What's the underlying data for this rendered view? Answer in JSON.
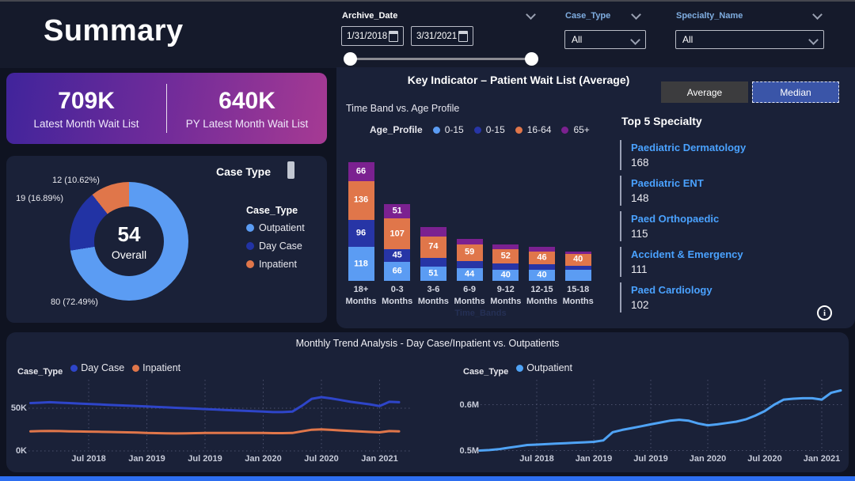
{
  "page": {
    "title": "Summary"
  },
  "filters": {
    "archive_date": {
      "label": "Archive_Date",
      "start": "1/31/2018",
      "end": "3/31/2021"
    },
    "case_type": {
      "label": "Case_Type",
      "value": "All"
    },
    "specialty_name": {
      "label": "Specialty_Name",
      "value": "All"
    }
  },
  "kpi": {
    "current_value": "709K",
    "current_label": "Latest Month Wait List",
    "py_value": "640K",
    "py_label": "PY Latest Month Wait List"
  },
  "key_indicator": {
    "title": "Key Indicator – Patient Wait List (Average)",
    "subtitle": "Time Band vs. Age Profile",
    "toggle": {
      "average": "Average",
      "median": "Median",
      "selected": "Median"
    }
  },
  "top5": {
    "title": "Top 5 Specialty",
    "items": [
      {
        "name": "Paediatric Dermatology",
        "value": "168"
      },
      {
        "name": "Paediatric ENT",
        "value": "148"
      },
      {
        "name": "Paed Orthopaedic",
        "value": "115"
      },
      {
        "name": "Accident & Emergency",
        "value": "111"
      },
      {
        "name": "Paed Cardiology",
        "value": "102"
      }
    ]
  },
  "trend": {
    "title": "Monthly Trend Analysis - Day Case/Inpatient vs. Outpatients"
  },
  "colors": {
    "light_blue": "#5b9cf3",
    "dark_blue": "#2735a6",
    "orange": "#e0764a",
    "purple": "#7b2190",
    "daycase_blue": "#2e45c9",
    "outpatient_blue": "#4fa3f5",
    "kpi_gradient_start": "#40249b",
    "kpi_gradient_end": "#a63a93",
    "bottom_strip": "#2d6ef0"
  },
  "chart_data": [
    {
      "id": "case-type-donut",
      "type": "pie",
      "title": "Case Type",
      "center_value": "54",
      "center_label": "Overall",
      "legend_title": "Case_Type",
      "slices": [
        {
          "name": "Outpatient",
          "value": 80,
          "pct": 72.49,
          "label": "80 (72.49%)",
          "color": "#5b9cf3"
        },
        {
          "name": "Day Case",
          "value": 19,
          "pct": 16.89,
          "label": "19 (16.89%)",
          "color": "#2233a4"
        },
        {
          "name": "Inpatient",
          "value": 12,
          "pct": 10.62,
          "label": "12 (10.62%)",
          "color": "#e0764a"
        }
      ]
    },
    {
      "id": "time-band-vs-age-profile",
      "type": "bar",
      "stacked": true,
      "title": "Time Band vs. Age Profile",
      "legend_title": "Age_Profile",
      "xlabel": "Time_Bands",
      "categories": [
        "18+ Months",
        "0-3 Months",
        "3-6 Months",
        "6-9 Months",
        "9-12 Months",
        "12-15 Months",
        "15-18 Months"
      ],
      "series": [
        {
          "name": "0-15",
          "color": "#5b9cf3",
          "values": [
            118,
            66,
            51,
            44,
            40,
            40,
            38
          ],
          "labels": [
            "118",
            "66",
            "51",
            "44",
            "40",
            "40",
            ""
          ]
        },
        {
          "name": "0-15",
          "color": "#2735a6",
          "values": [
            96,
            45,
            30,
            25,
            20,
            18,
            16
          ],
          "labels": [
            "96",
            "45",
            "",
            "",
            "",
            "",
            ""
          ]
        },
        {
          "name": "16-64",
          "color": "#e0764a",
          "values": [
            136,
            107,
            74,
            59,
            52,
            46,
            40
          ],
          "labels": [
            "136",
            "107",
            "74",
            "59",
            "52",
            "46",
            "40"
          ]
        },
        {
          "name": "65+",
          "color": "#7b2190",
          "values": [
            66,
            51,
            35,
            20,
            15,
            14,
            8
          ],
          "labels": [
            "66",
            "51",
            "",
            "",
            "",
            "",
            ""
          ]
        }
      ]
    },
    {
      "id": "trend-daycase-inpatient",
      "type": "line",
      "legend_title": "Case_Type",
      "x_ticks": [
        "Jul 2018",
        "Jan 2019",
        "Jul 2019",
        "Jan 2020",
        "Jul 2020",
        "Jan 2021"
      ],
      "y_ticks": [
        "0K",
        "50K"
      ],
      "ylim_k": [
        0,
        80
      ],
      "series": [
        {
          "name": "Day Case",
          "color": "#2e45c9",
          "values_k": [
            56,
            56.5,
            57,
            56.5,
            56,
            55.5,
            55,
            54.5,
            54,
            53.5,
            53,
            52.5,
            52,
            51.5,
            51,
            50.5,
            50,
            49.5,
            49,
            48.5,
            48,
            47.5,
            47,
            46.5,
            46,
            45.5,
            45.5,
            46,
            53,
            61,
            63,
            61.5,
            59.5,
            57.5,
            56,
            54.5,
            52.5,
            57.5,
            57
          ]
        },
        {
          "name": "Inpatient",
          "color": "#e0764a",
          "values_k": [
            23,
            23.2,
            23.4,
            23.2,
            23,
            22.8,
            22.6,
            22.4,
            22.2,
            22,
            21.8,
            21.5,
            21,
            20.8,
            20.6,
            20.5,
            20.6,
            20.8,
            21,
            21,
            21,
            21,
            21,
            21,
            21,
            20.8,
            20.8,
            21,
            23,
            24.8,
            25.2,
            24.6,
            24,
            23.4,
            22.8,
            22.2,
            21.8,
            23.2,
            23
          ]
        }
      ]
    },
    {
      "id": "trend-outpatient",
      "type": "line",
      "legend_title": "Case_Type",
      "x_ticks": [
        "Jul 2018",
        "Jan 2019",
        "Jul 2019",
        "Jan 2020",
        "Jul 2020",
        "Jan 2021"
      ],
      "y_ticks": [
        "0.5M",
        "0.6M"
      ],
      "ylim_m": [
        0.49,
        0.66
      ],
      "series": [
        {
          "name": "Outpatient",
          "color": "#4fa3f5",
          "values_m": [
            0.5,
            0.501,
            0.503,
            0.506,
            0.509,
            0.512,
            0.513,
            0.514,
            0.515,
            0.516,
            0.517,
            0.518,
            0.519,
            0.522,
            0.54,
            0.545,
            0.549,
            0.553,
            0.557,
            0.561,
            0.565,
            0.567,
            0.565,
            0.559,
            0.555,
            0.557,
            0.56,
            0.563,
            0.568,
            0.576,
            0.586,
            0.6,
            0.611,
            0.613,
            0.614,
            0.614,
            0.611,
            0.626,
            0.631
          ]
        }
      ]
    }
  ]
}
